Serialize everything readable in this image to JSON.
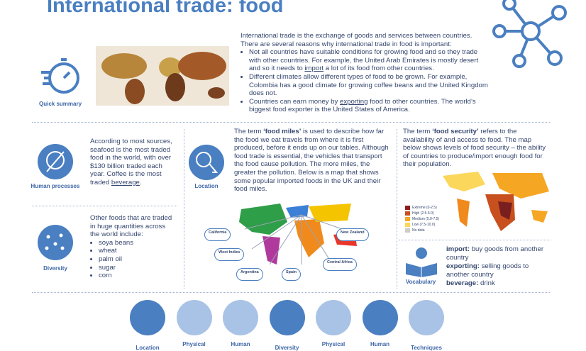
{
  "header": {
    "title": "International trade: food"
  },
  "quick_summary": {
    "label": "Quick summary",
    "intro": "International trade is the exchange of goods and services between countries. There are several reasons why international trade in food is important:",
    "bullets": [
      [
        "Not all countries have suitable conditions for growing food and so they trade with other countries. For example, the United Arab Emirates is mostly desert and so it needs to ",
        "import",
        " a lot of its food from other countries."
      ],
      [
        "Different climates allow different types of food to be grown. For example, Colombia has a good climate for growing coffee beans and the United Kingdom does not."
      ],
      [
        "Countries can earn money by ",
        "exporting",
        " food to other countries. The world’s biggest food exporter is the United States of America."
      ]
    ]
  },
  "human_processes": {
    "label": "Human processes",
    "text": [
      "According to most sources, seafood is the most traded food in the world, with over $130 billion traded each year. Coffee is the most traded ",
      "beverage",
      "."
    ]
  },
  "diversity": {
    "label": "Diversity",
    "text": "Other foods that are traded in huge quantities across the world include:",
    "items": [
      "soya beans",
      "wheat",
      "palm oil",
      "sugar",
      "corn"
    ]
  },
  "location": {
    "label": "Location",
    "text": [
      "The term ",
      "‘food miles’",
      " is used to describe how far the food we eat travels from where it is first produced, before it ends up on our tables. Although food trade is essential, the vehicles that transport the food cause pollution. The more miles, the greater the pollution. Below is a map that shows some popular imported foods in the UK and their food miles."
    ],
    "map_labels": [
      "California",
      "West Indies",
      "Argentina",
      "Spain",
      "Central Africa",
      "New Zealand"
    ]
  },
  "food_security": {
    "text": [
      "The term ",
      "‘food security’",
      " refers to the availability of and access to food. The map below shows levels of food security – the ability of countries to produce/import enough food for their population."
    ],
    "legend": [
      "Extreme (0-2.5)",
      "High (2.5-5.0)",
      "Medium (5.0-7.5)",
      "Low (7.5-10.0)",
      "No data"
    ]
  },
  "vocabulary": {
    "label": "Vocabulary",
    "items": [
      [
        "import:",
        " buy goods from another country"
      ],
      [
        "exporting:",
        " selling goods to another country"
      ],
      [
        "beverage:",
        " drink"
      ]
    ]
  },
  "nav": [
    "Location",
    "Physical",
    "Human",
    "Diversity",
    "Physical",
    "Human",
    "Techniques"
  ]
}
